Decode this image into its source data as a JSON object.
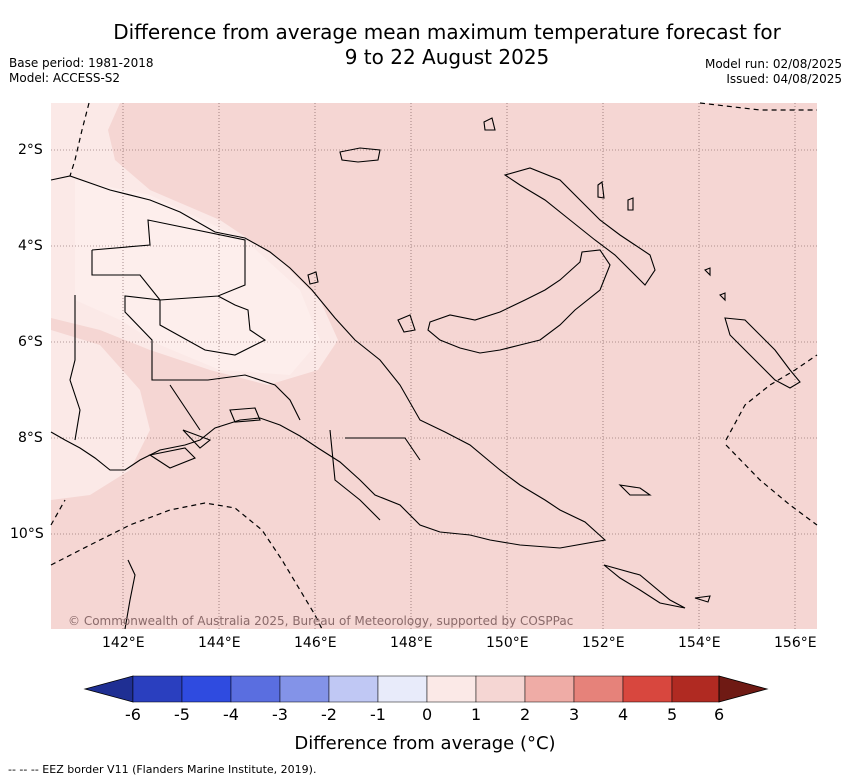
{
  "title": {
    "line1": "Difference from average mean maximum temperature forecast for",
    "line2": "9 to 22 August 2025"
  },
  "meta": {
    "base_period": "Base period: 1981-2018",
    "model": "Model: ACCESS-S2",
    "model_run": "Model run: 02/08/2025",
    "issued": "Issued: 04/08/2025"
  },
  "map": {
    "lat_labels": [
      "2°S",
      "4°S",
      "6°S",
      "8°S",
      "10°S"
    ],
    "lon_labels": [
      "142°E",
      "144°E",
      "146°E",
      "148°E",
      "150°E",
      "152°E",
      "154°E",
      "156°E"
    ],
    "copyright": "© Commonwealth of Australia 2025, Bureau of Meteorology, supported by COSPPac",
    "colors": {
      "fill_1_to_2": "#f5d6d3",
      "fill_0_to_1": "#fbe9e7",
      "land_line": "#000000"
    }
  },
  "colorbar": {
    "labels": [
      "-6",
      "-5",
      "-4",
      "-3",
      "-2",
      "-1",
      "0",
      "1",
      "2",
      "3",
      "4",
      "5",
      "6"
    ],
    "colors": [
      "#1f2f93",
      "#2a3fbf",
      "#2f4be0",
      "#5a6ee0",
      "#8393e8",
      "#c0c8f4",
      "#e8ebfa",
      "#fbe9e7",
      "#f5d6d3",
      "#efaca6",
      "#e6827a",
      "#d8473e",
      "#b02a22",
      "#6f1a14"
    ],
    "title": "Difference from average (°C)"
  },
  "footnote": "--  --  -- EEZ border V11 (Flanders Marine Institute, 2019)."
}
